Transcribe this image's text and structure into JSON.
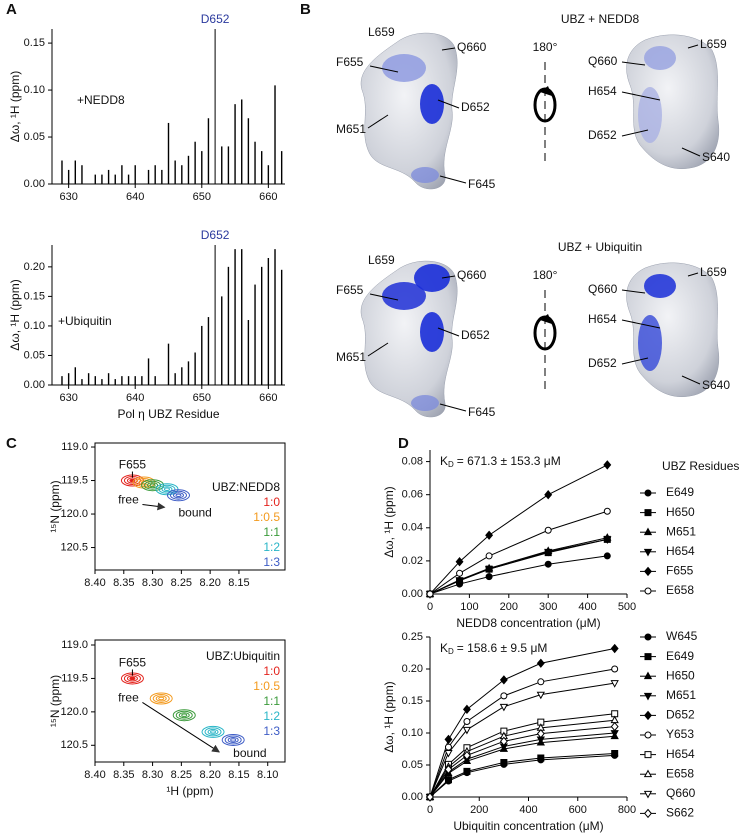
{
  "panel_labels": [
    "A",
    "B",
    "C",
    "D"
  ],
  "structures": [
    {
      "title": "UBZ + NEDD8",
      "rotation": "180°",
      "labels": [
        "L659",
        "F655",
        "Q660",
        "D652",
        "M651",
        "F645",
        "L659",
        "Q660",
        "H654",
        "D652",
        "S640"
      ]
    },
    {
      "title": "UBZ + Ubiquitin",
      "rotation": "180°",
      "labels": [
        "L659",
        "F655",
        "Q660",
        "D652",
        "M651",
        "F645",
        "L659",
        "Q660",
        "H654",
        "D652",
        "S640"
      ]
    }
  ],
  "chart_data": [
    {
      "type": "bar",
      "annotation": "+NEDD8",
      "ylabel": "Δω, ¹H (ppm)",
      "color": "#000000",
      "x": [
        629,
        630,
        631,
        632,
        634,
        635,
        636,
        637,
        638,
        639,
        640,
        642,
        643,
        644,
        645,
        646,
        647,
        648,
        649,
        650,
        651,
        653,
        654,
        655,
        656,
        657,
        658,
        659,
        660,
        661,
        662
      ],
      "values": [
        0.025,
        0.015,
        0.025,
        0.02,
        0.01,
        0.01,
        0.015,
        0.01,
        0.02,
        0.01,
        0.02,
        0.015,
        0.02,
        0.015,
        0.065,
        0.025,
        0.02,
        0.03,
        0.045,
        0.035,
        0.07,
        0.04,
        0.04,
        0.085,
        0.09,
        0.07,
        0.045,
        0.035,
        0.02,
        0.105,
        0.035
      ],
      "marker_line": {
        "x": 652,
        "label": "D652",
        "color": "#2b3a9e"
      },
      "xlim": [
        627.5,
        662.5
      ],
      "xticks": [
        630,
        640,
        650,
        660
      ],
      "ylim": [
        0,
        0.165
      ],
      "yticks": [
        {
          "value": 0,
          "label": "0.00"
        },
        0.05,
        {
          "value": 0.1,
          "label": "0.10"
        },
        0.15
      ]
    },
    {
      "type": "bar",
      "annotation": "+Ubiquitin",
      "ylabel": "Δω, ¹H (ppm)",
      "xlabel": "Pol η UBZ Residue",
      "color": "#000000",
      "x": [
        629,
        630,
        631,
        632,
        633,
        634,
        635,
        636,
        637,
        638,
        639,
        640,
        641,
        642,
        643,
        645,
        646,
        647,
        648,
        649,
        650,
        651,
        653,
        654,
        655,
        656,
        657,
        658,
        659,
        660,
        661,
        662
      ],
      "values": [
        0.015,
        0.02,
        0.03,
        0.01,
        0.02,
        0.015,
        0.01,
        0.02,
        0.01,
        0.015,
        0.015,
        0.015,
        0.015,
        0.045,
        0.015,
        0.07,
        0.02,
        0.03,
        0.04,
        0.055,
        0.1,
        0.115,
        0.15,
        0.2,
        0.23,
        0.23,
        0.11,
        0.17,
        0.2,
        0.215,
        0.23,
        0.195
      ],
      "marker_line": {
        "x": 652,
        "label": "D652",
        "color": "#2b3a9e"
      },
      "xlim": [
        627.5,
        662.5
      ],
      "xticks": [
        630,
        640,
        650,
        660
      ],
      "ylim": [
        0,
        0.237
      ],
      "yticks": [
        {
          "value": 0,
          "label": "0.00"
        },
        0.05,
        {
          "value": 0.1,
          "label": "0.10"
        },
        0.15,
        {
          "value": 0.2,
          "label": "0.20"
        }
      ]
    },
    {
      "type": "scatter",
      "ylabel": "¹⁵N (ppm)",
      "y_inverted": true,
      "legend_title": "UBZ:NEDD8",
      "annotations": {
        "peak": "F655",
        "start": "free",
        "end": "bound"
      },
      "series": [
        {
          "name": "1:0",
          "color": "#e3221c",
          "x": [
            8.335
          ],
          "values": [
            119.5
          ]
        },
        {
          "name": "1:0.5",
          "color": "#f39a1e",
          "x": [
            8.315
          ],
          "values": [
            119.53
          ]
        },
        {
          "name": "1:1",
          "color": "#3a9a3a",
          "x": [
            8.3
          ],
          "values": [
            119.57
          ]
        },
        {
          "name": "1:2",
          "color": "#29b5c7",
          "x": [
            8.275
          ],
          "values": [
            119.63
          ]
        },
        {
          "name": "1:3",
          "color": "#3d5cc6",
          "x": [
            8.255
          ],
          "values": [
            119.72
          ]
        }
      ],
      "xlim": [
        8.4,
        8.07
      ],
      "xticks": [
        {
          "value": 8.4,
          "label": "8.40"
        },
        8.35,
        {
          "value": 8.3,
          "label": "8.30"
        },
        8.25,
        {
          "value": 8.2,
          "label": "8.20"
        },
        8.15
      ],
      "ylim": [
        118.94,
        120.835
      ],
      "yticks": [
        {
          "value": 119,
          "label": "119.0"
        },
        119.5,
        {
          "value": 120,
          "label": "120.0"
        },
        120.5
      ]
    },
    {
      "type": "scatter",
      "ylabel": "¹⁵N (ppm)",
      "xlabel": "¹H (ppm)",
      "y_inverted": true,
      "legend_title": "UBZ:Ubiquitin",
      "annotations": {
        "peak": "F655",
        "start": "free",
        "end": "bound"
      },
      "series": [
        {
          "name": "1:0",
          "color": "#e3221c",
          "x": [
            8.335
          ],
          "values": [
            119.5
          ]
        },
        {
          "name": "1:0.5",
          "color": "#f39a1e",
          "x": [
            8.285
          ],
          "values": [
            119.8
          ]
        },
        {
          "name": "1:1",
          "color": "#3a9a3a",
          "x": [
            8.245
          ],
          "values": [
            120.05
          ]
        },
        {
          "name": "1:2",
          "color": "#29b5c7",
          "x": [
            8.195
          ],
          "values": [
            120.3
          ]
        },
        {
          "name": "1:3",
          "color": "#3d5cc6",
          "x": [
            8.16
          ],
          "values": [
            120.42
          ]
        }
      ],
      "xlim": [
        8.4,
        8.07
      ],
      "xticks": [
        {
          "value": 8.4,
          "label": "8.40"
        },
        8.35,
        {
          "value": 8.3,
          "label": "8.30"
        },
        8.25,
        {
          "value": 8.2,
          "label": "8.20"
        },
        8.15,
        {
          "value": 8.1,
          "label": "8.10"
        }
      ],
      "ylim": [
        118.925,
        120.75
      ],
      "yticks": [
        {
          "value": 119,
          "label": "119.0"
        },
        119.5,
        {
          "value": 120,
          "label": "120.0"
        },
        120.5
      ]
    },
    {
      "type": "line",
      "ylabel": "Δω, ¹H (ppm)",
      "xlabel": "NEDD8 concentration (μM)",
      "legend_title": "UBZ Residues",
      "kd": {
        "symbol": "K",
        "subscript": "D",
        "text": "= 671.3 ± 153.3 μM"
      },
      "x": [
        0,
        75,
        150,
        300,
        450
      ],
      "series": [
        {
          "name": "E649",
          "marker": "circle",
          "color": "#000000",
          "values": [
            0,
            0.006,
            0.0105,
            0.018,
            0.023
          ]
        },
        {
          "name": "H650",
          "marker": "square",
          "color": "#000000",
          "values": [
            0,
            0.008,
            0.015,
            0.025,
            0.033
          ]
        },
        {
          "name": "M651",
          "marker": "triangle",
          "color": "#000000",
          "values": [
            0,
            0.0085,
            0.0155,
            0.026,
            0.034
          ]
        },
        {
          "name": "H654",
          "marker": "triangle-down",
          "color": "#000000",
          "values": [
            0,
            0.0083,
            0.015,
            0.0255,
            0.033
          ]
        },
        {
          "name": "F655",
          "marker": "diamond",
          "color": "#000000",
          "values": [
            0,
            0.0195,
            0.0355,
            0.06,
            0.078
          ]
        },
        {
          "name": "E658",
          "marker": "circle-open",
          "color": "#000000",
          "values": [
            0,
            0.0125,
            0.023,
            0.0385,
            0.05
          ]
        }
      ],
      "xlim": [
        0,
        500
      ],
      "xticks": [
        0,
        100,
        200,
        300,
        400,
        500
      ],
      "ylim": [
        0,
        0.087
      ],
      "yticks": [
        {
          "value": 0,
          "label": "0.00"
        },
        0.02,
        0.04,
        0.06,
        0.08
      ]
    },
    {
      "type": "line",
      "ylabel": "Δω, ¹H (ppm)",
      "xlabel": "Ubiquitin concentration (μM)",
      "kd": {
        "symbol": "K",
        "subscript": "D",
        "text": "= 158.6 ± 9.5 μM"
      },
      "x": [
        0,
        75,
        150,
        300,
        450,
        750
      ],
      "series": [
        {
          "name": "W645",
          "marker": "circle",
          "color": "#000000",
          "values": [
            0,
            0.025,
            0.038,
            0.051,
            0.058,
            0.065
          ]
        },
        {
          "name": "E649",
          "marker": "square",
          "color": "#000000",
          "values": [
            0,
            0.027,
            0.04,
            0.054,
            0.061,
            0.068
          ]
        },
        {
          "name": "H650",
          "marker": "triangle",
          "color": "#000000",
          "values": [
            0,
            0.037,
            0.056,
            0.075,
            0.085,
            0.095
          ]
        },
        {
          "name": "M651",
          "marker": "triangle-down",
          "color": "#000000",
          "values": [
            0,
            0.039,
            0.059,
            0.079,
            0.09,
            0.1
          ]
        },
        {
          "name": "D652",
          "marker": "diamond",
          "color": "#000000",
          "values": [
            0,
            0.09,
            0.137,
            0.183,
            0.209,
            0.232
          ]
        },
        {
          "name": "Y653",
          "marker": "circle-open",
          "color": "#000000",
          "values": [
            0,
            0.078,
            0.118,
            0.158,
            0.18,
            0.2
          ]
        },
        {
          "name": "H654",
          "marker": "square-open",
          "color": "#000000",
          "values": [
            0,
            0.051,
            0.077,
            0.103,
            0.117,
            0.13
          ]
        },
        {
          "name": "E658",
          "marker": "triangle-open",
          "color": "#000000",
          "values": [
            0,
            0.047,
            0.071,
            0.095,
            0.108,
            0.12
          ]
        },
        {
          "name": "Q660",
          "marker": "triangle-down-open",
          "color": "#000000",
          "values": [
            0,
            0.069,
            0.105,
            0.141,
            0.16,
            0.178
          ]
        },
        {
          "name": "S662",
          "marker": "diamond-open",
          "color": "#000000",
          "values": [
            0,
            0.043,
            0.065,
            0.087,
            0.099,
            0.11
          ]
        }
      ],
      "xlim": [
        0,
        800
      ],
      "xticks": [
        0,
        200,
        400,
        600,
        800
      ],
      "ylim": [
        0,
        0.25
      ],
      "yticks": [
        {
          "value": 0,
          "label": "0.00"
        },
        0.05,
        {
          "value": 0.1,
          "label": "0.10"
        },
        0.15,
        {
          "value": 0.2,
          "label": "0.20"
        },
        0.25
      ]
    }
  ]
}
